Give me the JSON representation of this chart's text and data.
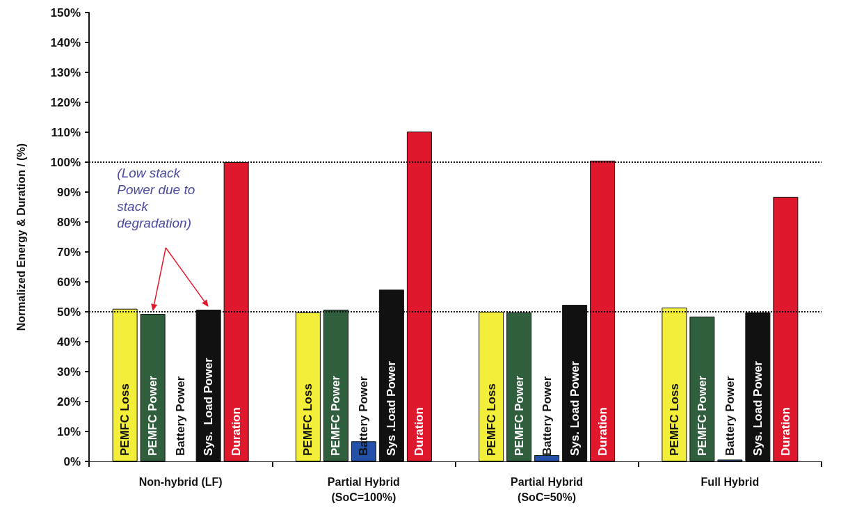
{
  "chart_data": {
    "type": "bar",
    "ylabel": "Normalized Energy & Duration / (%)",
    "categories": [
      "Non-hybrid (LF)",
      "Partial Hybrid\n(SoC=100%)",
      "Partial Hybrid\n(SoC=50%)",
      "Full Hybrid"
    ],
    "series": [
      {
        "name": "PEMFC Loss",
        "color": "#f2ee3a",
        "values": [
          51,
          49.8,
          50,
          51.4
        ]
      },
      {
        "name": "PEMFC Power",
        "color": "#2f5f3c",
        "values": [
          49.3,
          50.7,
          49.8,
          48.4
        ]
      },
      {
        "name": "Battery Power",
        "color": "#2350a8",
        "values": [
          0,
          6.7,
          2.1,
          0.6
        ]
      },
      {
        "color": "#111111",
        "values": [
          50.7,
          57.4,
          52.3,
          49.8
        ],
        "value_labels": [
          "Sys.  Load Power",
          "Sys .Load Power",
          "Sys. Load Power",
          "Sys. Load Power"
        ]
      },
      {
        "name": "Duration",
        "color": "#e0182d",
        "values": [
          100,
          110.2,
          100.5,
          88.4
        ]
      }
    ],
    "ylim": [
      0,
      150
    ],
    "yticks": [
      {
        "value": 0,
        "label": "0%"
      },
      {
        "value": 10,
        "label": "10%"
      },
      {
        "value": 20,
        "label": "20%"
      },
      {
        "value": 30,
        "label": "30%"
      },
      {
        "value": 40,
        "label": "40%"
      },
      {
        "value": 50,
        "label": "50%"
      },
      {
        "value": 60,
        "label": "60%"
      },
      {
        "value": 70,
        "label": "70%"
      },
      {
        "value": 80,
        "label": "80%"
      },
      {
        "value": 90,
        "label": "90%"
      },
      {
        "value": 100,
        "label": "100%"
      },
      {
        "value": 110,
        "label": "110%"
      },
      {
        "value": 120,
        "label": "120%"
      },
      {
        "value": 130,
        "label": "130%"
      },
      {
        "value": 140,
        "label": "140%"
      },
      {
        "value": 150,
        "label": "150%"
      }
    ],
    "ref_lines": [
      {
        "axis": "y",
        "value": 50,
        "line_style": "dotted",
        "color": "#111111"
      },
      {
        "axis": "y",
        "value": 100,
        "line_style": "dotted",
        "color": "#111111"
      }
    ],
    "annotations": [
      "(Low stack Power due to stack degradation)"
    ],
    "grid": false,
    "legend": false
  }
}
